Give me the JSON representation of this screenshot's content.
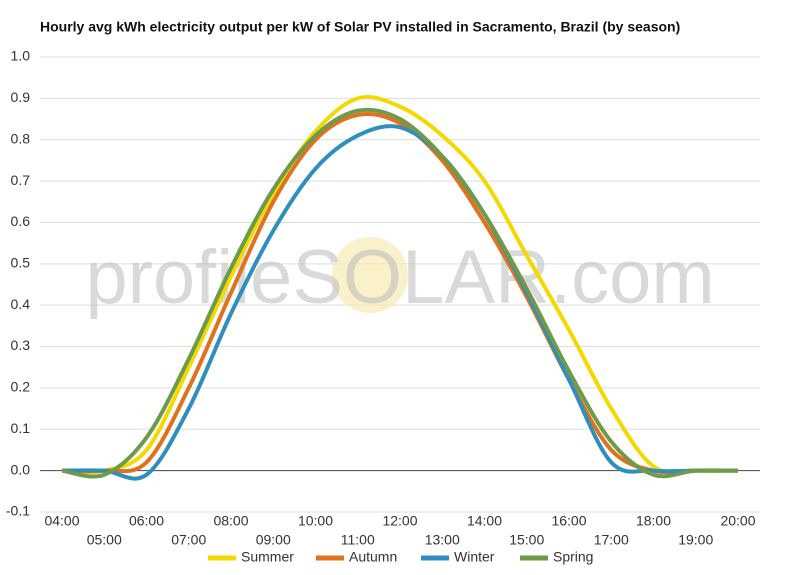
{
  "chart_data": {
    "type": "line",
    "title": "Hourly avg kWh electricity output per kW of Solar PV installed in Sacramento, Brazil (by season)",
    "watermark": "profileSOLAR.com",
    "categories": [
      "04:00",
      "05:00",
      "06:00",
      "07:00",
      "08:00",
      "09:00",
      "10:00",
      "11:00",
      "12:00",
      "13:00",
      "14:00",
      "15:00",
      "16:00",
      "17:00",
      "18:00",
      "19:00",
      "20:00"
    ],
    "series": [
      {
        "name": "Summer",
        "color": "#f5d800",
        "values": [
          0,
          0,
          0.05,
          0.25,
          0.47,
          0.67,
          0.82,
          0.9,
          0.88,
          0.81,
          0.7,
          0.52,
          0.34,
          0.15,
          0.01,
          0,
          0
        ]
      },
      {
        "name": "Autumn",
        "color": "#e2711d",
        "values": [
          0,
          0,
          0.02,
          0.2,
          0.43,
          0.65,
          0.8,
          0.86,
          0.84,
          0.75,
          0.6,
          0.42,
          0.22,
          0.05,
          0,
          0,
          0
        ]
      },
      {
        "name": "Winter",
        "color": "#2e8fbf",
        "values": [
          0,
          0,
          -0.01,
          0.15,
          0.38,
          0.58,
          0.73,
          0.81,
          0.83,
          0.76,
          0.62,
          0.43,
          0.22,
          0.02,
          0,
          0,
          0
        ]
      },
      {
        "name": "Spring",
        "color": "#6e9b4a",
        "values": [
          0,
          -0.01,
          0.08,
          0.27,
          0.49,
          0.68,
          0.81,
          0.87,
          0.85,
          0.76,
          0.62,
          0.44,
          0.24,
          0.07,
          -0.01,
          0,
          0
        ]
      }
    ],
    "ylim": [
      -0.1,
      1.0
    ],
    "yticks": [
      -0.1,
      {
        "value": 0,
        "label": "0.0"
      },
      0.1,
      0.2,
      0.3,
      0.4,
      0.5,
      0.6,
      0.7,
      0.8,
      0.9,
      {
        "value": 1,
        "label": "1.0"
      }
    ],
    "grid": true,
    "legend": "bottom"
  }
}
